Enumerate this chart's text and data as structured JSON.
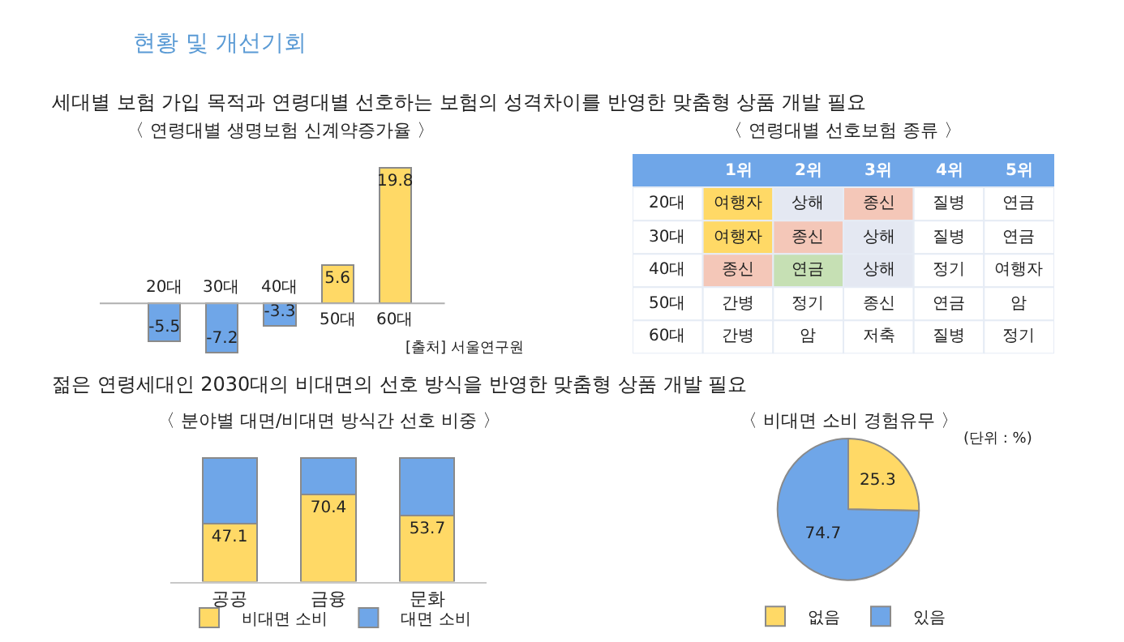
{
  "chart_data": [
    {
      "type": "bar",
      "title": "〈 연령대별 생명보험 신계약증가율 〉",
      "categories": [
        "20대",
        "30대",
        "40대",
        "50대",
        "60대"
      ],
      "values": [
        -5.5,
        -7.2,
        -3.3,
        5.6,
        19.8
      ],
      "colors": [
        "#6fa6e8",
        "#6fa6e8",
        "#6fa6e8",
        "#ffd966",
        "#ffd966"
      ],
      "data_labels": true,
      "annotations": [
        "현황 및 개선기회",
        "세대별 보험 가입 목적과 연령대별 선호하는 보험의 성격차이를 반영한 맞춤형 상품 개발 필요",
        "[출처] 서울연구원"
      ]
    },
    {
      "type": "heatmap",
      "title": "〈 연령대별 선호보험 종류 〉",
      "cells": [
        [
          null,
          null,
          null,
          null,
          null
        ],
        [
          null,
          null,
          null,
          null,
          null
        ],
        [
          null,
          null,
          null,
          null,
          null
        ],
        [
          null,
          null,
          null,
          null,
          null
        ],
        [
          null,
          null,
          null,
          null,
          null
        ]
      ],
      "categories": [
        "1위",
        "2위",
        "3위",
        "4위",
        "5위"
      ],
      "y_categories": [
        "20대",
        "30대",
        "40대",
        "50대",
        "60대"
      ],
      "color": "#6fa6e8",
      "cell_labels": [
        [
          "여행자",
          "상해",
          "종신",
          "질병",
          "연금"
        ],
        [
          "여행자",
          "종신",
          "상해",
          "질병",
          "연금"
        ],
        [
          "종신",
          "연금",
          "상해",
          "정기",
          "여행자"
        ],
        [
          "간병",
          "정기",
          "종신",
          "연금",
          "암"
        ],
        [
          "간병",
          "암",
          "저축",
          "질병",
          "정기"
        ]
      ],
      "colors": [
        [
          "#ffd966",
          "#e4e8f2",
          "#f4c7b8",
          "#ffffff",
          "#ffffff"
        ],
        [
          "#ffd966",
          "#f4c7b8",
          "#e4e8f2",
          "#ffffff",
          "#ffffff"
        ],
        [
          "#f4c7b8",
          "#c6e0b4",
          "#e4e8f2",
          "#ffffff",
          "#ffffff"
        ],
        [
          "#ffffff",
          "#ffffff",
          "#ffffff",
          "#ffffff",
          "#ffffff"
        ],
        [
          "#ffffff",
          "#ffffff",
          "#ffffff",
          "#ffffff",
          "#ffffff"
        ]
      ]
    },
    {
      "type": "bar",
      "title": "〈 분야별 대면/비대면 방식간 선호 비중 〉",
      "categories": [
        "공공",
        "금융",
        "문화"
      ],
      "stacked": true,
      "legend": "bottom",
      "series": [
        {
          "name": "비대면 소비",
          "color": "#ffd966",
          "values": [
            47.1,
            70.4,
            53.7
          ],
          "value_labels": [
            "47.1",
            "70.4",
            "53.7"
          ]
        },
        {
          "name": "대면 소비",
          "color": "#6fa6e8",
          "values": [
            52.9,
            29.6,
            46.3
          ]
        }
      ],
      "annotations": [
        "젊은 연령세대인 2030대의 비대면의 선호 방식을 반영한 맞춤형 상품 개발 필요"
      ]
    },
    {
      "type": "pie",
      "title": "〈 비대면 소비 경험유무 〉",
      "categories": [
        "없음",
        "있음"
      ],
      "values": [
        25.3,
        74.7
      ],
      "colors": [
        "#ffd966",
        "#6fa6e8"
      ],
      "data_labels": true,
      "legend": "bottom",
      "annotations": [
        "(단위 : %)"
      ]
    }
  ]
}
